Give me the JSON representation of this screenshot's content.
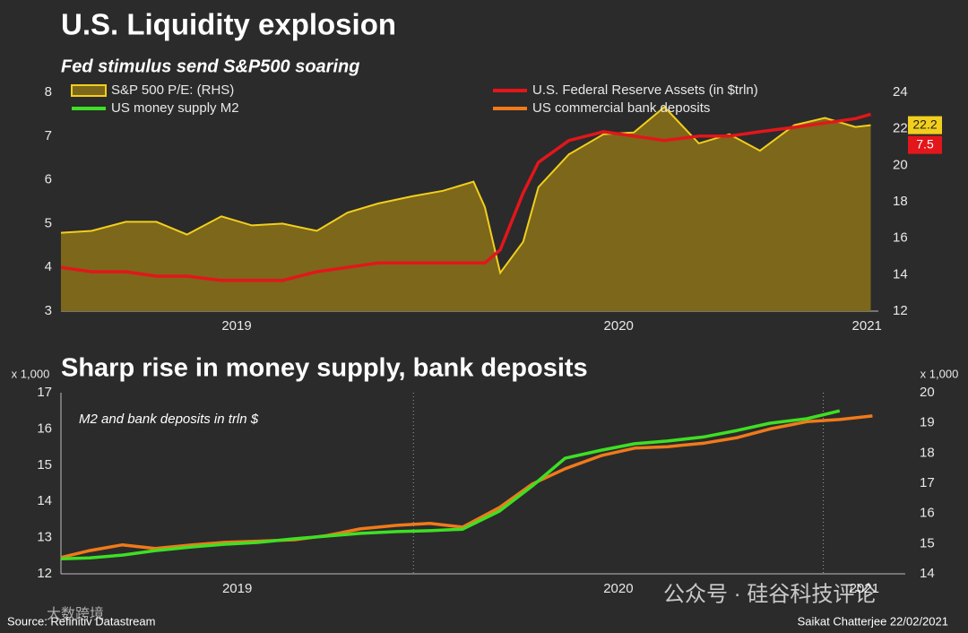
{
  "chart_data": [
    {
      "type": "combo",
      "title": "U.S. Liquidity explosion",
      "subtitle": "Fed stimulus send S&P500 soaring",
      "x": [
        2019.04,
        2019.12,
        2019.21,
        2019.29,
        2019.37,
        2019.46,
        2019.54,
        2019.62,
        2019.71,
        2019.79,
        2019.87,
        2019.96,
        2020.04,
        2020.12,
        2020.15,
        2020.19,
        2020.25,
        2020.29,
        2020.37,
        2020.46,
        2020.54,
        2020.62,
        2020.71,
        2020.79,
        2020.87,
        2020.96,
        2021.04,
        2021.12,
        2021.16
      ],
      "series": [
        {
          "name": "S&P 500 P/E: (RHS)",
          "color": "#f2cf1d",
          "fill": "#7d671b",
          "style": "area",
          "axis": "y2",
          "values": [
            16.3,
            16.4,
            16.9,
            16.9,
            16.2,
            17.2,
            16.7,
            16.8,
            16.4,
            17.4,
            17.9,
            18.3,
            18.6,
            19.1,
            17.7,
            14.1,
            15.8,
            18.8,
            20.6,
            21.7,
            21.8,
            23.2,
            21.2,
            21.7,
            20.8,
            22.2,
            22.6,
            22.1,
            22.2
          ]
        },
        {
          "name": "U.S. Federal Reserve Assets (in $trln)",
          "color": "#e3161b",
          "style": "line",
          "values": [
            4.0,
            3.9,
            3.9,
            3.8,
            3.8,
            3.7,
            3.7,
            3.7,
            3.9,
            4.0,
            4.1,
            4.1,
            4.1,
            4.1,
            4.1,
            4.4,
            5.7,
            6.4,
            6.9,
            7.1,
            7.0,
            6.9,
            7.0,
            7.0,
            7.1,
            7.2,
            7.3,
            7.4,
            7.5
          ]
        }
      ],
      "xlim": [
        2019.04,
        2021.18
      ],
      "xticks": [
        {
          "value": 2019.5,
          "label": "2019"
        },
        {
          "value": 2020.5,
          "label": "2020"
        },
        {
          "value": 2021.15,
          "label": "2021"
        }
      ],
      "ylim": [
        3,
        8
      ],
      "yticks": [
        3,
        4,
        5,
        6,
        7,
        8
      ],
      "y2lim": [
        12,
        24
      ],
      "y2ticks": [
        12,
        14,
        16,
        18,
        20,
        22,
        24
      ],
      "legend": "top",
      "value_tags": true
    },
    {
      "type": "line",
      "title": "Sharp rise in money supply, bank deposits",
      "annotation": "M2 and bank deposits in trln $",
      "ylabel": "x 1,000",
      "y2label": "x 1,000",
      "x": [
        2019.14,
        2019.21,
        2019.29,
        2019.37,
        2019.46,
        2019.54,
        2019.62,
        2019.71,
        2019.79,
        2019.87,
        2019.96,
        2020.04,
        2020.12,
        2020.21,
        2020.29,
        2020.37,
        2020.46,
        2020.54,
        2020.62,
        2020.71,
        2020.79,
        2020.87,
        2020.96,
        2021.04,
        2021.12
      ],
      "series": [
        {
          "name": "US money supply M2",
          "color": "#3ee024",
          "style": "line",
          "axis": "y2",
          "values": [
            14.5,
            14.53,
            14.62,
            14.77,
            14.89,
            14.98,
            15.04,
            15.16,
            15.25,
            15.34,
            15.4,
            15.43,
            15.48,
            16.08,
            16.91,
            17.83,
            18.1,
            18.31,
            18.4,
            18.54,
            18.75,
            18.99,
            19.14,
            19.4,
            null
          ]
        },
        {
          "name": "US commercial bank deposits",
          "color": "#f07a1a",
          "style": "line",
          "values": [
            12.45,
            12.64,
            12.8,
            12.7,
            12.8,
            12.87,
            12.9,
            12.94,
            13.06,
            13.24,
            13.34,
            13.39,
            13.29,
            13.83,
            14.48,
            14.9,
            15.27,
            15.47,
            15.51,
            15.61,
            15.76,
            16.0,
            16.2,
            16.26,
            16.36
          ]
        }
      ],
      "xlim": [
        2019.14,
        2021.2
      ],
      "xticks": [
        {
          "value": 2019.57,
          "label": "2019"
        },
        {
          "value": 2020.5,
          "label": "2020"
        },
        {
          "value": 2021.1,
          "label": "2021"
        }
      ],
      "xgrid": [
        2020,
        2021
      ],
      "ylim": [
        12,
        17
      ],
      "yticks": [
        12,
        13,
        14,
        15,
        16,
        17
      ],
      "y2lim": [
        14,
        20
      ],
      "y2ticks": [
        14,
        15,
        16,
        17,
        18,
        19,
        20
      ]
    }
  ],
  "footer": {
    "source": "Source: Refinitiv Datastream",
    "credit": "Saikat Chatterjee 22/02/2021"
  },
  "watermarks": [
    "公众号 · 硅谷科技评论",
    "大数跨境"
  ]
}
